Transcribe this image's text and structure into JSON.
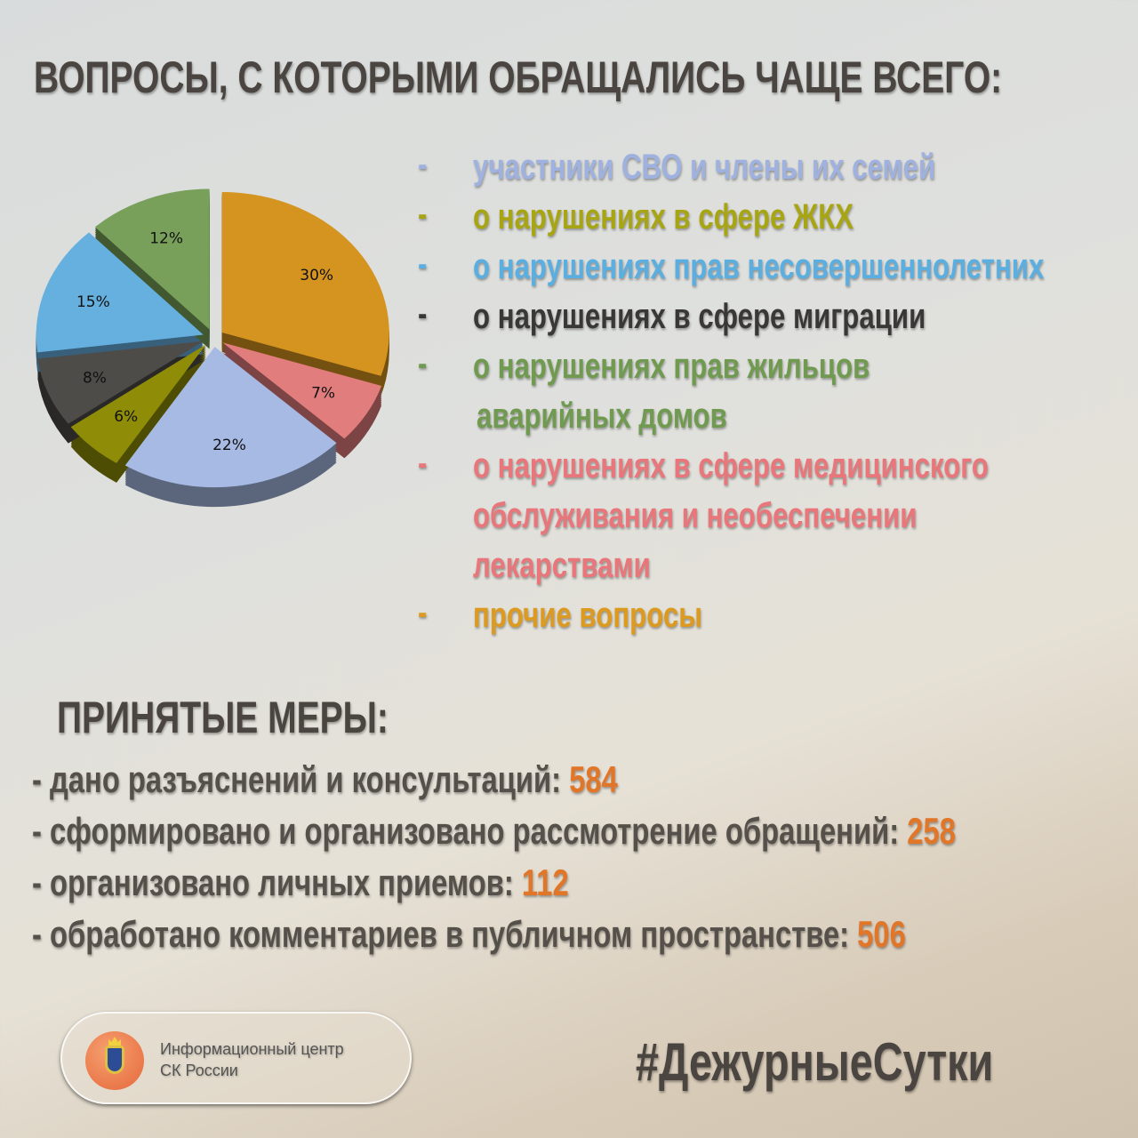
{
  "title": "ВОПРОСЫ, С КОТОРЫМИ ОБРАЩАЛИСЬ ЧАЩЕ ВСЕГО:",
  "legend": [
    {
      "label": "участники СВО и члены их семей",
      "color": "#9fb2df"
    },
    {
      "label": "о нарушениях в сфере ЖКХ",
      "color": "#a8a514"
    },
    {
      "label": "о нарушениях прав несовершеннолетних",
      "color": "#5aaee0"
    },
    {
      "label": "о нарушениях в сфере миграции",
      "color": "#3a3836"
    },
    {
      "label": "о нарушениях прав жильцов",
      "label2": "аварийных домов",
      "color": "#6f9a50"
    },
    {
      "label": "о нарушениях в сфере медицинского",
      "label2": "обслуживания и необеспечении",
      "label3": "лекарствами",
      "color": "#e8767a"
    },
    {
      "label": "прочие вопросы",
      "color": "#dc9a20"
    }
  ],
  "chart_data": {
    "type": "pie",
    "values": [
      30,
      7,
      22,
      6,
      8,
      15,
      12
    ],
    "labels": [
      "30%",
      "7%",
      "22%",
      "6%",
      "8%",
      "15%",
      "12%"
    ],
    "colors": [
      "#d4941f",
      "#e27d7d",
      "#a7bae3",
      "#8f8d08",
      "#4e4c48",
      "#66b0e0",
      "#78a05a"
    ],
    "style": "3d-exploded"
  },
  "measures": {
    "title": "ПРИНЯТЫЕ МЕРЫ:",
    "items": [
      {
        "label": "-  дано разъяснений и консультаций: ",
        "value": "584"
      },
      {
        "label": "-  сформировано и организовано рассмотрение обращений: ",
        "value": "258"
      },
      {
        "label": "-  организовано личных приемов: ",
        "value": "112"
      },
      {
        "label": "-  обработано комментариев в публичном пространстве: ",
        "value": "506"
      }
    ]
  },
  "logo": {
    "line1": "Информационный центр",
    "line2": "СК России"
  },
  "hashtag": "#ДежурныеСутки"
}
